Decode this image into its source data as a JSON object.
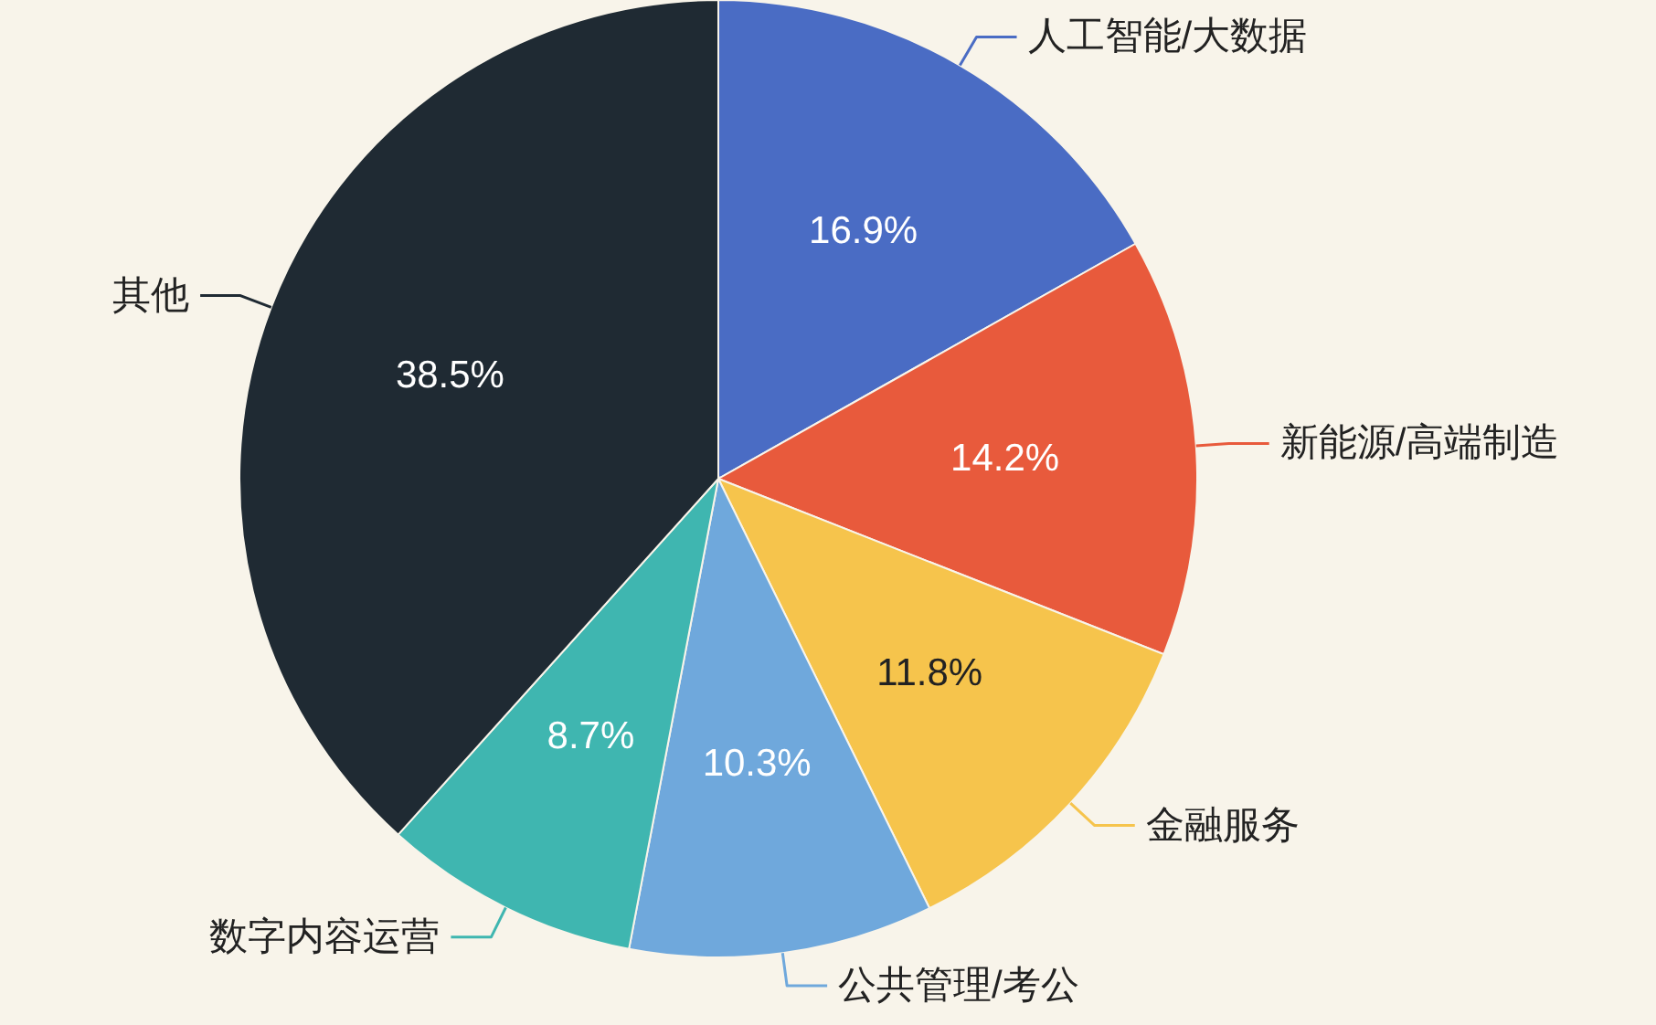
{
  "chart_data": {
    "type": "pie",
    "categories": [
      "人工智能/大数据",
      "新能源/高端制造",
      "金融服务",
      "公共管理/考公",
      "数字内容运营",
      "其他"
    ],
    "values": [
      16.9,
      14.2,
      11.8,
      10.3,
      8.7,
      38.5
    ],
    "colors": [
      "#4a6cc4",
      "#e85a3c",
      "#f6c44c",
      "#6fa8dc",
      "#3fb6b0",
      "#1f2a33"
    ],
    "data_labels": true,
    "value_labels": [
      "16.9%",
      "14.2%",
      "11.8%",
      "10.3%",
      "8.7%",
      "38.5%"
    ],
    "legend": false
  }
}
